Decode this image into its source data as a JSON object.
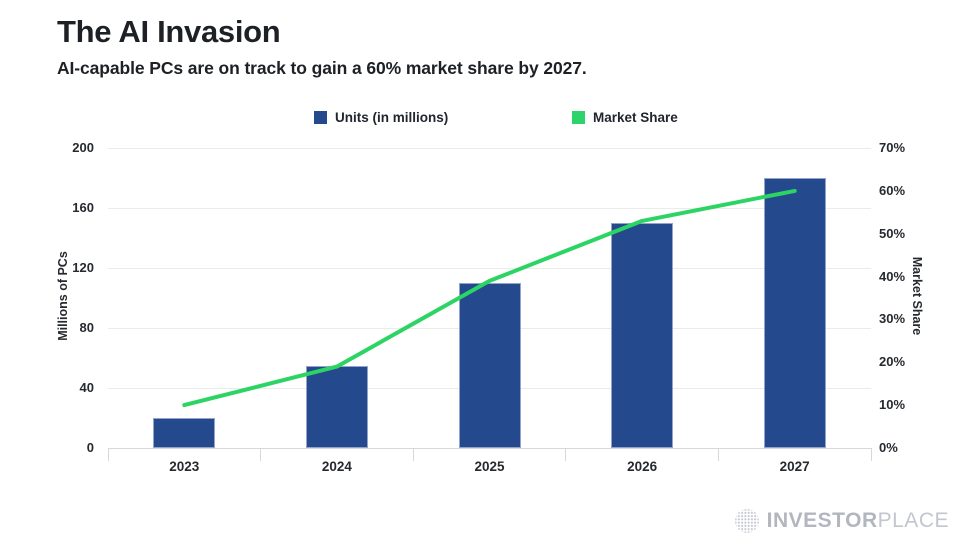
{
  "header": {
    "title": "The AI Invasion",
    "subtitle": "AI-capable PCs are on track to gain a 60% market share by 2027."
  },
  "legend": [
    {
      "label": "Units (in millions)",
      "color": "#25498D"
    },
    {
      "label": "Market Share",
      "color": "#2FD36B"
    }
  ],
  "chart_data": {
    "type": "combo_bar_line",
    "title": "The AI Invasion",
    "subtitle": "AI-capable PCs are on track to gain a 60% market share by 2027.",
    "categories": [
      "2023",
      "2024",
      "2025",
      "2026",
      "2027"
    ],
    "series": [
      {
        "name": "Units (in millions)",
        "type": "bar",
        "axis": "left",
        "color": "#25498D",
        "values": [
          20,
          55,
          110,
          150,
          180
        ]
      },
      {
        "name": "Market Share",
        "type": "line",
        "axis": "right",
        "color": "#2BD463",
        "unit": "%",
        "values": [
          10,
          19,
          39,
          53,
          60
        ]
      }
    ],
    "left_axis": {
      "label": "Millions of PCs",
      "min": 0,
      "max": 200,
      "tick_step": 40,
      "ticks": [
        0,
        40,
        80,
        120,
        160,
        200
      ]
    },
    "right_axis": {
      "label": "Market Share",
      "min": 0,
      "max": 70,
      "tick_step": 10,
      "tick_labels": [
        "0%",
        "10%",
        "20%",
        "30%",
        "40%",
        "50%",
        "60%",
        "70%"
      ]
    },
    "grid": "horizontal",
    "legend_position": "top-center"
  },
  "footer": {
    "brand_bold": "INVESTOR",
    "brand_light": "PLACE"
  }
}
